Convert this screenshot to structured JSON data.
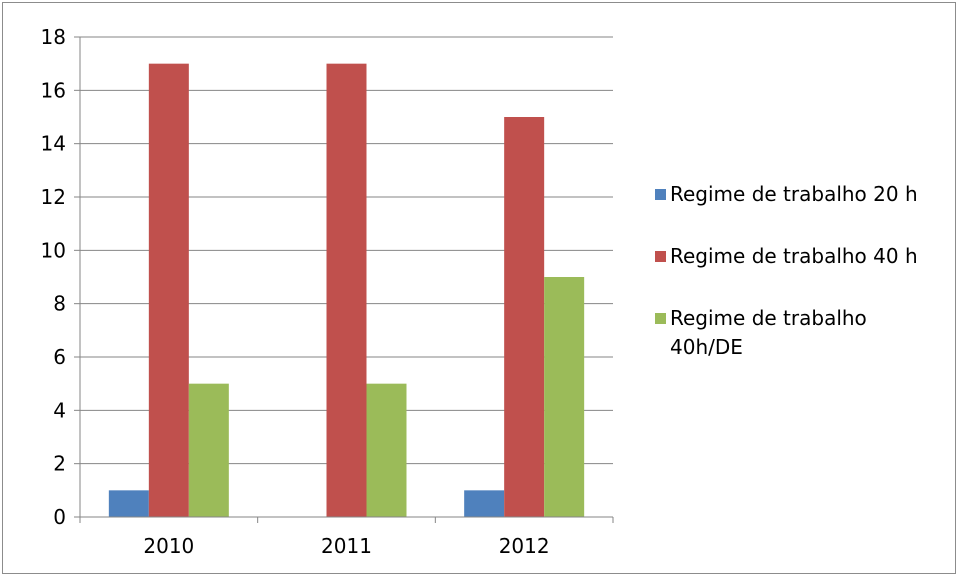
{
  "chart_data": {
    "type": "bar",
    "categories": [
      "2010",
      "2011",
      "2012"
    ],
    "series": [
      {
        "name": "Regime de trabalho 20 h",
        "values": [
          1,
          0,
          1
        ],
        "color": "#4f81bd"
      },
      {
        "name": "Regime de trabalho 40 h",
        "values": [
          17,
          17,
          15
        ],
        "color": "#c0504d"
      },
      {
        "name": "Regime de trabalho 40h/DE",
        "values": [
          5,
          5,
          9
        ],
        "color": "#9bbb59"
      }
    ],
    "title": "",
    "xlabel": "",
    "ylabel": "",
    "ylim": [
      0,
      18
    ],
    "yticks": [
      0,
      2,
      4,
      6,
      8,
      10,
      12,
      14,
      16,
      18
    ],
    "grid": true,
    "legend": "right"
  }
}
